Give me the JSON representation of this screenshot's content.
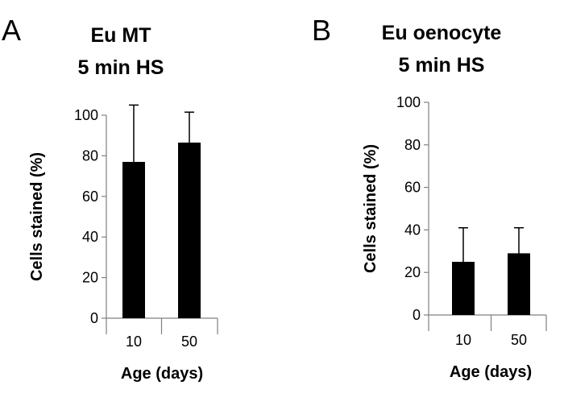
{
  "chart_data": [
    {
      "type": "bar",
      "panel": "A",
      "title_lines": [
        "Eu MT",
        "5 min HS"
      ],
      "xlabel": "Age (days)",
      "ylabel": "Cells stained (%)",
      "categories": [
        "10",
        "50"
      ],
      "values": [
        77,
        86.5
      ],
      "error_upper": [
        28,
        15
      ],
      "ylim": [
        0,
        100
      ],
      "yticks": [
        "0",
        "20",
        "40",
        "60",
        "80",
        "100"
      ],
      "bar_color": "#000000",
      "grid": false
    },
    {
      "type": "bar",
      "panel": "B",
      "title_lines": [
        "Eu oenocyte",
        "5 min HS"
      ],
      "xlabel": "Age (days)",
      "ylabel": "Cells stained (%)",
      "categories": [
        "10",
        "50"
      ],
      "values": [
        25,
        29
      ],
      "error_upper": [
        16,
        12
      ],
      "ylim": [
        0,
        100
      ],
      "yticks": [
        "0",
        "20",
        "40",
        "60",
        "80",
        "100"
      ],
      "bar_color": "#000000",
      "grid": false
    }
  ]
}
